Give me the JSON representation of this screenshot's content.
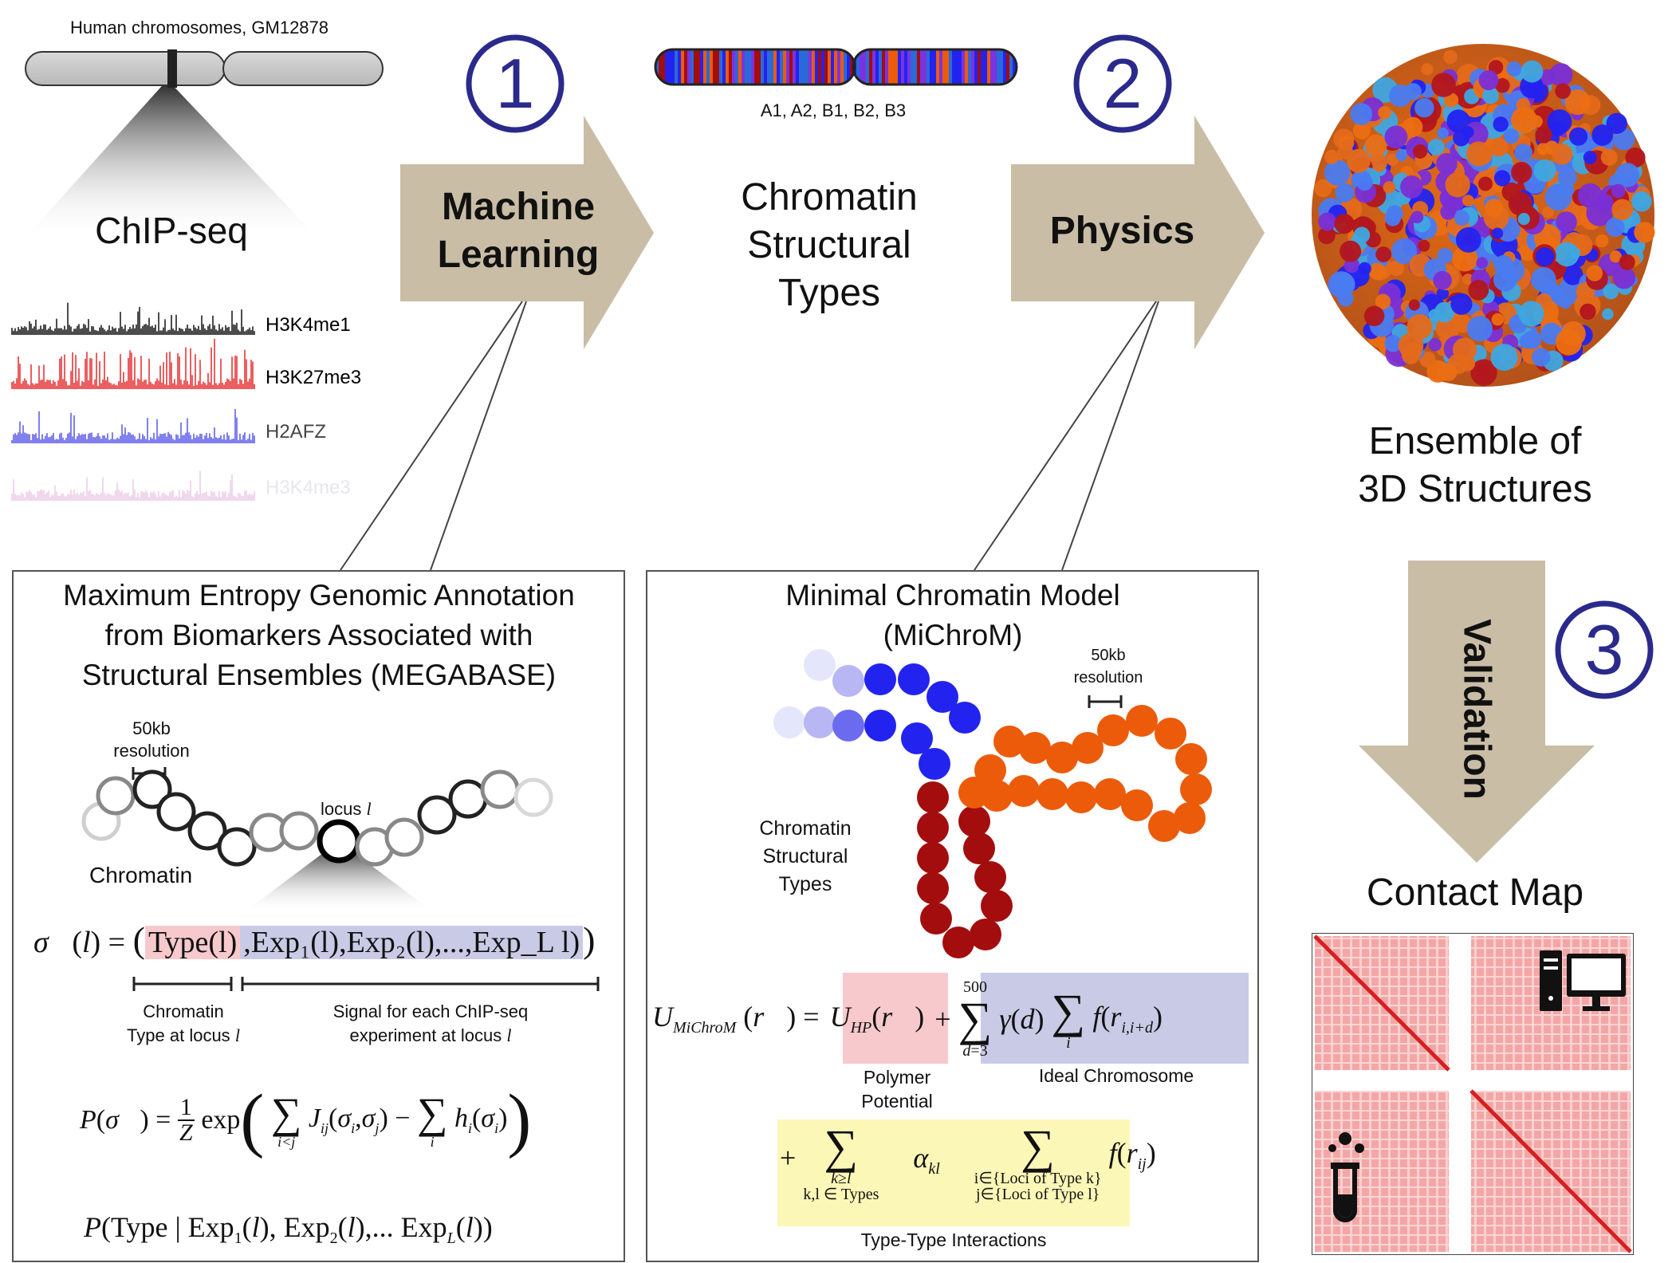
{
  "chipseq": {
    "chrom_label": "Human chromosomes, GM12878",
    "title": "ChIP-seq",
    "tracks": [
      {
        "name": "H3K4me1",
        "color": "#000000"
      },
      {
        "name": "H3K27me3",
        "color": "#e41a1c"
      },
      {
        "name": "H2AFZ",
        "color": "#4a4ae8"
      },
      {
        "name": "H3K4me3",
        "color": "#e9c8e3"
      }
    ]
  },
  "step1": {
    "number": "1",
    "arrow_line1": "Machine",
    "arrow_line2": "Learning"
  },
  "types": {
    "labels": "A1, A2, B1, B2, B3",
    "title_l1": "Chromatin",
    "title_l2": "Structural",
    "title_l3": "Types"
  },
  "step2": {
    "number": "2",
    "arrow_label": "Physics"
  },
  "ensemble": {
    "title_l1": "Ensemble of",
    "title_l2": "3D Structures"
  },
  "step3": {
    "number": "3",
    "arrow_label": "Validation"
  },
  "contact": {
    "title": "Contact Map",
    "computer_icon": "computer-icon",
    "testtube_icon": "test-tube-icon"
  },
  "megabase": {
    "title_l1": "Maximum Entropy Genomic Annotation",
    "title_l2": "from Biomarkers Associated with",
    "title_l3": "Structural Ensembles (MEGABASE)",
    "res_l1": "50kb",
    "res_l2": "resolution",
    "locus_label": "locus",
    "locus_var": "l",
    "chromatin_label": "Chromatin",
    "eq1_lhs": "σ⃗(l) =",
    "eq1_type": "Type(l)",
    "eq1_exp": ",Exp₁(l),Exp₂(l),...,Exp_L  l)",
    "brace1_l1": "Chromatin",
    "brace1_l2": "Type at locus",
    "brace2_l1": "Signal for each ChIP-seq",
    "brace2_l2": "experiment at locus",
    "eq2": "P(σ⃗) = (1/Z) exp( Σ_{i<j} J_ij(σ_i,σ_j) − Σ_i h_i(σ_i) )",
    "eq3": "P(Type | Exp₁(l), Exp₂(l),... Exp_L(l))"
  },
  "michrom": {
    "title_l1": "Minimal Chromatin Model",
    "title_l2": "(MiChroM)",
    "res_l1": "50kb",
    "res_l2": "resolution",
    "types_l1": "Chromatin",
    "types_l2": "Structural",
    "types_l3": "Types",
    "eq1": "U_MiChroM(r⃗) = U_HP(r⃗) + Σ_{d=3}^{500} γ(d) Σ_i f(r_{i,i+d})",
    "polymer_l1": "Polymer",
    "polymer_l2": "Potential",
    "ideal": "Ideal Chromosome",
    "eq2": "+ Σ_{k≥l; k,l ∈ Types} α_kl Σ_{i∈{Loci of Type k}; j∈{Loci of Type l}} f(r_ij)",
    "loci_k": "i∈{Loci of Type k}",
    "loci_l": "j∈{Loci of Type  l}",
    "types_under": "k,l  ∈ Types",
    "interactions": "Type-Type Interactions"
  },
  "colors": {
    "arrow": "#c9bda6",
    "circle_num": "#2a2a8c",
    "type_red": "#f7c9cc",
    "exp_blue": "#c9cbe6",
    "yellow": "#fbf7b7",
    "bead_blue": "#2323f0",
    "bead_orange": "#ec5b0a",
    "bead_red": "#a30d0d"
  }
}
